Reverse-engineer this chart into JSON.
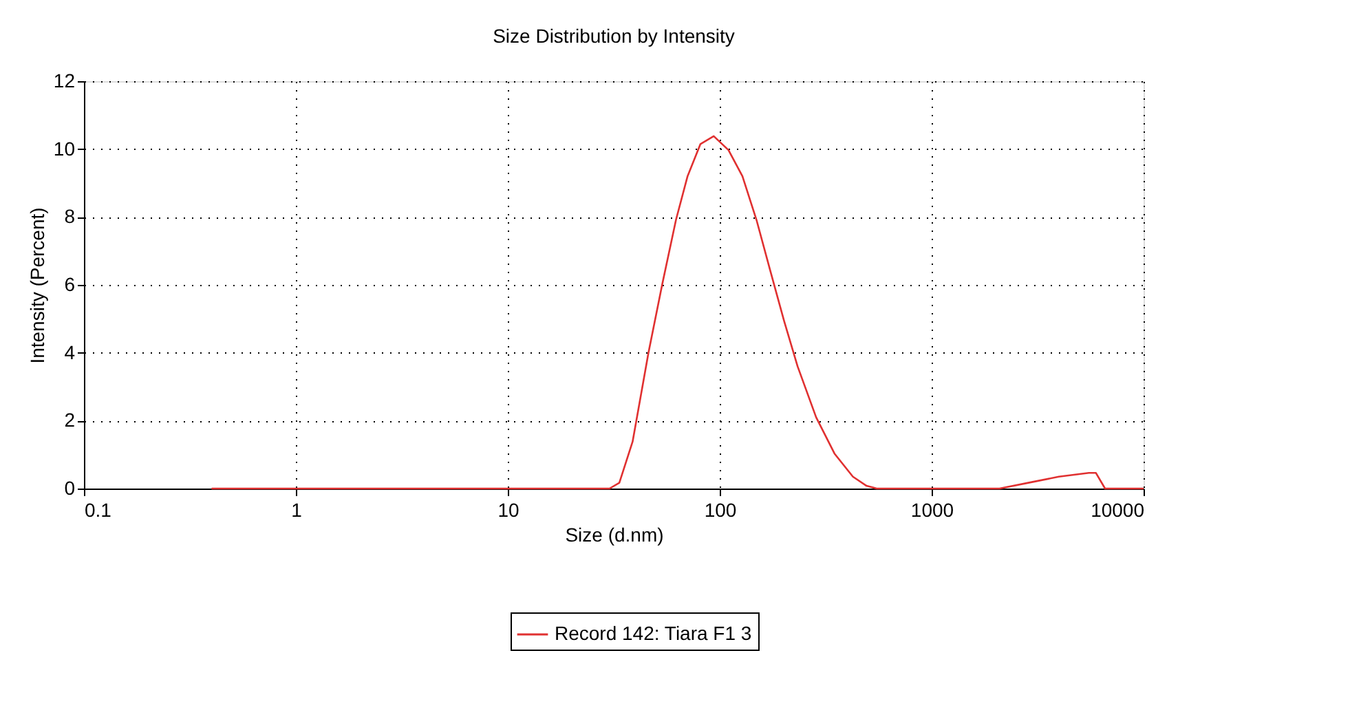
{
  "chart_data": {
    "type": "line",
    "title": "Size Distribution by Intensity",
    "xlabel": "Size (d.nm)",
    "ylabel": "Intensity (Percent)",
    "log": "x",
    "grid": true,
    "legend": "bottom",
    "line_style": "solid",
    "xlim": [
      0.1,
      10000
    ],
    "xticks": [
      0.1,
      1,
      10,
      100,
      1000,
      10000
    ],
    "ylim": [
      0,
      12
    ],
    "yticks": [
      0,
      2,
      4,
      6,
      8,
      10,
      12
    ],
    "x": [
      0.4,
      1,
      10,
      30.2,
      33.6,
      38.8,
      46.1,
      53.6,
      62.2,
      70.5,
      81.1,
      93.7,
      110,
      128,
      149,
      173,
      201,
      233,
      285,
      348,
      425,
      493,
      550,
      1000,
      2090,
      2970,
      3980,
      5520,
      5960,
      6580,
      10000
    ],
    "series": [
      {
        "name": "Record 142: Tiara F1 3",
        "color": "#e03030",
        "values": [
          0,
          0,
          0,
          0,
          0.17,
          1.38,
          4.0,
          6.03,
          7.92,
          9.2,
          10.15,
          10.38,
          9.97,
          9.2,
          7.92,
          6.43,
          4.95,
          3.6,
          2.1,
          1.03,
          0.35,
          0.08,
          0,
          0,
          0,
          0.19,
          0.35,
          0.46,
          0.46,
          0,
          0
        ]
      }
    ]
  }
}
